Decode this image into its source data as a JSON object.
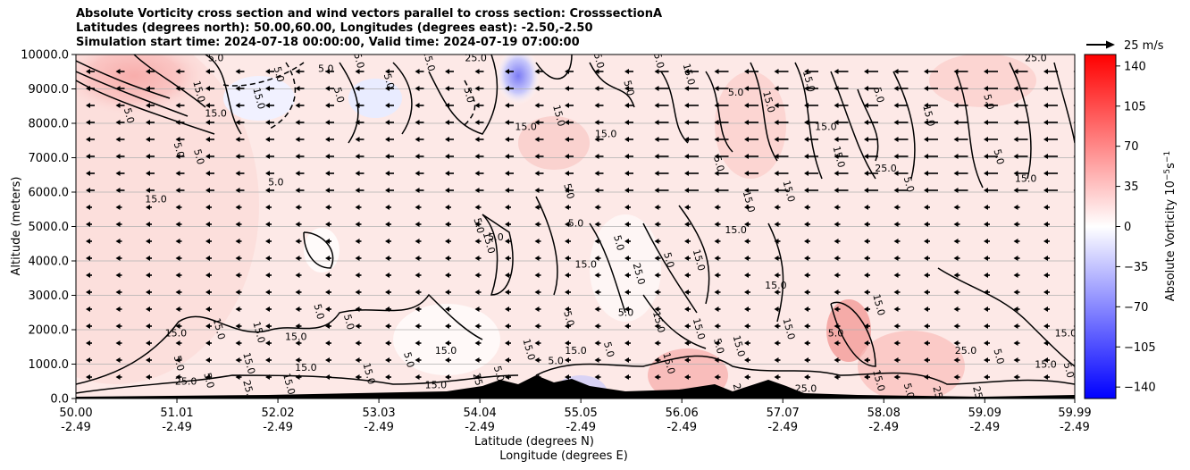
{
  "chart_data": {
    "type": "heatmap",
    "title_lines": [
      "Absolute Vorticity cross section and wind vectors parallel to cross section: CrosssectionA",
      "Latitudes (degrees north): 50.00,60.00, Longitudes (degrees east): -2.50,-2.50",
      "Simulation start time: 2024-07-18 00:00:00, Valid time: 2024-07-19 07:00:00"
    ],
    "ylabel": "Altitude (meters)",
    "xlabel_lat": "Latitude (degrees N)",
    "xlabel_lon": "Longitude (degrees E)",
    "ylim": [
      0,
      10000
    ],
    "xlim": [
      50.0,
      59.99
    ],
    "y_ticks": [
      "0.0",
      "1000.0",
      "2000.0",
      "3000.0",
      "4000.0",
      "5000.0",
      "6000.0",
      "7000.0",
      "8000.0",
      "9000.0",
      "10000.0"
    ],
    "x_ticks": [
      {
        "lat": "50.00",
        "lon": "-2.49"
      },
      {
        "lat": "51.01",
        "lon": "-2.49"
      },
      {
        "lat": "52.02",
        "lon": "-2.49"
      },
      {
        "lat": "53.03",
        "lon": "-2.49"
      },
      {
        "lat": "54.04",
        "lon": "-2.49"
      },
      {
        "lat": "55.05",
        "lon": "-2.49"
      },
      {
        "lat": "56.06",
        "lon": "-2.49"
      },
      {
        "lat": "57.07",
        "lon": "-2.49"
      },
      {
        "lat": "58.08",
        "lon": "-2.49"
      },
      {
        "lat": "59.09",
        "lon": "-2.49"
      },
      {
        "lat": "59.99",
        "lon": "-2.49"
      }
    ],
    "colorbar": {
      "label": "Absolute Vorticity 10",
      "label_sup1": "−5",
      "label_mid": "s",
      "label_sup2": "−1",
      "range": [
        -150,
        150
      ],
      "ticks": [
        "140",
        "105",
        "70",
        "35",
        "0",
        "−35",
        "−70",
        "−105",
        "−140"
      ],
      "tick_values": [
        140,
        105,
        70,
        35,
        0,
        -35,
        -70,
        -105,
        -140
      ],
      "colors": {
        "low": "#0000ff",
        "mid": "#ffffff",
        "high": "#ff0000"
      }
    },
    "quiver_key": {
      "label": "25 m/s",
      "speed": 25
    },
    "contour_levels": [
      "5.0",
      "15.0",
      "25.0"
    ],
    "contour_labels": [
      {
        "text": "5.0",
        "lat": 51.4,
        "alt": 9800
      },
      {
        "text": "15.0",
        "lat": 51.2,
        "alt": 8900
      },
      {
        "text": "5.0",
        "lat": 50.5,
        "alt": 8200
      },
      {
        "text": "15.0",
        "lat": 51.4,
        "alt": 8200
      },
      {
        "text": "5.0",
        "lat": 51.0,
        "alt": 7200
      },
      {
        "text": "5.0",
        "lat": 51.2,
        "alt": 7000
      },
      {
        "text": "15.0",
        "lat": 50.8,
        "alt": 5700
      },
      {
        "text": "5.0",
        "lat": 52.0,
        "alt": 9400
      },
      {
        "text": "15.0",
        "lat": 51.8,
        "alt": 8700
      },
      {
        "text": "5.0",
        "lat": 52.0,
        "alt": 6200
      },
      {
        "text": "5.0",
        "lat": 52.8,
        "alt": 9800
      },
      {
        "text": "5.0",
        "lat": 52.6,
        "alt": 8800
      },
      {
        "text": "5.0",
        "lat": 52.5,
        "alt": 9500
      },
      {
        "text": "15.0",
        "lat": 53.5,
        "alt": 9800
      },
      {
        "text": "5.0",
        "lat": 53.1,
        "alt": 9200
      },
      {
        "text": "25.0",
        "lat": 54.0,
        "alt": 9800
      },
      {
        "text": "5.0",
        "lat": 53.9,
        "alt": 8800
      },
      {
        "text": "15.0",
        "lat": 54.8,
        "alt": 8200
      },
      {
        "text": "15.0",
        "lat": 54.5,
        "alt": 7800
      },
      {
        "text": "5.0",
        "lat": 55.2,
        "alt": 9800
      },
      {
        "text": "5.0",
        "lat": 55.5,
        "alt": 9000
      },
      {
        "text": "15.0",
        "lat": 55.3,
        "alt": 7600
      },
      {
        "text": "5.0",
        "lat": 55.8,
        "alt": 9800
      },
      {
        "text": "15.0",
        "lat": 56.1,
        "alt": 9400
      },
      {
        "text": "5.0",
        "lat": 56.6,
        "alt": 8800
      },
      {
        "text": "15.0",
        "lat": 56.9,
        "alt": 8600
      },
      {
        "text": "15.0",
        "lat": 57.3,
        "alt": 9200
      },
      {
        "text": "15.0",
        "lat": 57.5,
        "alt": 7800
      },
      {
        "text": "5.0",
        "lat": 58.0,
        "alt": 8800
      },
      {
        "text": "15.0",
        "lat": 58.5,
        "alt": 8200
      },
      {
        "text": "25.0",
        "lat": 59.6,
        "alt": 9800
      },
      {
        "text": "5.0",
        "lat": 59.1,
        "alt": 8600
      },
      {
        "text": "15.0",
        "lat": 57.6,
        "alt": 7000
      },
      {
        "text": "25.0",
        "lat": 58.1,
        "alt": 6600
      },
      {
        "text": "5.0",
        "lat": 58.3,
        "alt": 6200
      },
      {
        "text": "5.0",
        "lat": 59.2,
        "alt": 7000
      },
      {
        "text": "15.0",
        "lat": 59.5,
        "alt": 6300
      },
      {
        "text": "15.0",
        "lat": 57.1,
        "alt": 6000
      },
      {
        "text": "15.0",
        "lat": 56.7,
        "alt": 5700
      },
      {
        "text": "15.0",
        "lat": 56.6,
        "alt": 4800
      },
      {
        "text": "5.0",
        "lat": 56.4,
        "alt": 6800
      },
      {
        "text": "5.0",
        "lat": 54.0,
        "alt": 5000
      },
      {
        "text": "5.0",
        "lat": 54.2,
        "alt": 4600
      },
      {
        "text": "15.0",
        "lat": 54.1,
        "alt": 4500
      },
      {
        "text": "5.0",
        "lat": 54.9,
        "alt": 6000
      },
      {
        "text": "5.0",
        "lat": 55.0,
        "alt": 5000
      },
      {
        "text": "5.0",
        "lat": 55.4,
        "alt": 4500
      },
      {
        "text": "25.0",
        "lat": 55.6,
        "alt": 3600
      },
      {
        "text": "15.0",
        "lat": 55.1,
        "alt": 3800
      },
      {
        "text": "5.0",
        "lat": 55.9,
        "alt": 4000
      },
      {
        "text": "15.0",
        "lat": 56.2,
        "alt": 4000
      },
      {
        "text": "15.0",
        "lat": 57.0,
        "alt": 3200
      },
      {
        "text": "15.0",
        "lat": 58.0,
        "alt": 2700
      },
      {
        "text": "15.0",
        "lat": 57.1,
        "alt": 2000
      },
      {
        "text": "5.0",
        "lat": 57.6,
        "alt": 1800
      },
      {
        "text": "15.0",
        "lat": 56.2,
        "alt": 2000
      },
      {
        "text": "15.0",
        "lat": 55.8,
        "alt": 2200
      },
      {
        "text": "5.0",
        "lat": 55.5,
        "alt": 2400
      },
      {
        "text": "5.0",
        "lat": 54.9,
        "alt": 2300
      },
      {
        "text": "5.0",
        "lat": 55.3,
        "alt": 1400
      },
      {
        "text": "15.0",
        "lat": 55.0,
        "alt": 1300
      },
      {
        "text": "5.0",
        "lat": 56.4,
        "alt": 1500
      },
      {
        "text": "15.0",
        "lat": 56.6,
        "alt": 1500
      },
      {
        "text": "25.0",
        "lat": 58.9,
        "alt": 1300
      },
      {
        "text": "25.0",
        "lat": 58.6,
        "alt": 20
      },
      {
        "text": "25.0",
        "lat": 59.0,
        "alt": 20
      },
      {
        "text": "15.0",
        "lat": 59.7,
        "alt": 900
      },
      {
        "text": "5.0",
        "lat": 59.2,
        "alt": 1200
      },
      {
        "text": "5.0",
        "lat": 59.9,
        "alt": 800
      },
      {
        "text": "15.0",
        "lat": 59.9,
        "alt": 1800
      },
      {
        "text": "5.0",
        "lat": 52.4,
        "alt": 2500
      },
      {
        "text": "5.0",
        "lat": 52.7,
        "alt": 2200
      },
      {
        "text": "15.0",
        "lat": 51.0,
        "alt": 1800
      },
      {
        "text": "15.0",
        "lat": 51.4,
        "alt": 2000
      },
      {
        "text": "15.0",
        "lat": 51.8,
        "alt": 1900
      },
      {
        "text": "15.0",
        "lat": 52.2,
        "alt": 1700
      },
      {
        "text": "15.0",
        "lat": 51.7,
        "alt": 1000
      },
      {
        "text": "5.0",
        "lat": 51.0,
        "alt": 1000
      },
      {
        "text": "25.0",
        "lat": 51.1,
        "alt": 400
      },
      {
        "text": "5.0",
        "lat": 51.3,
        "alt": 500
      },
      {
        "text": "25.0",
        "lat": 51.7,
        "alt": 200
      },
      {
        "text": "15.0",
        "lat": 52.3,
        "alt": 800
      },
      {
        "text": "15.0",
        "lat": 52.9,
        "alt": 700
      },
      {
        "text": "5.0",
        "lat": 53.3,
        "alt": 1100
      },
      {
        "text": "15.0",
        "lat": 53.7,
        "alt": 1300
      },
      {
        "text": "5.0",
        "lat": 54.2,
        "alt": 700
      },
      {
        "text": "15.0",
        "lat": 54.5,
        "alt": 1400
      },
      {
        "text": "5.0",
        "lat": 54.8,
        "alt": 1000
      },
      {
        "text": "25.0",
        "lat": 54.0,
        "alt": 400
      },
      {
        "text": "15.0",
        "lat": 52.1,
        "alt": 400
      },
      {
        "text": "15.0",
        "lat": 53.6,
        "alt": 300
      },
      {
        "text": "15.0",
        "lat": 55.9,
        "alt": 1000
      },
      {
        "text": "25.0",
        "lat": 56.6,
        "alt": 100
      },
      {
        "text": "25.0",
        "lat": 57.3,
        "alt": 200
      },
      {
        "text": "15.0",
        "lat": 58.0,
        "alt": 500
      },
      {
        "text": "5.0",
        "lat": 58.3,
        "alt": 200
      }
    ]
  }
}
